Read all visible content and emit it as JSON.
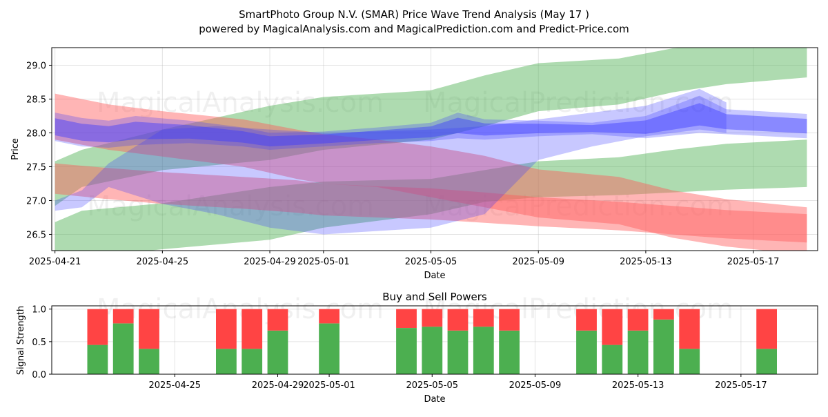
{
  "title_line1": "SmartPhoto Group N.V. (SMAR) Price Wave Trend Analysis (May 17 )",
  "title_line2": "powered by MagicalAnalysis.com and MagicalPrediction.com and Predict-Price.com",
  "watermarks": [
    "MagicalAnalysis.com",
    "MagicalPrediction.com"
  ],
  "colors": {
    "green_band": "#4caf50",
    "red_band": "#ff5a5a",
    "blue_band": "#3b3bff",
    "buy_bar": "#4caf50",
    "sell_bar": "#ff4444"
  },
  "chart_data": [
    {
      "type": "area",
      "name": "price-wave-chart",
      "title": "",
      "xlabel": "Date",
      "ylabel": "Price",
      "xlim": [
        "2025-04-20",
        "2025-05-20"
      ],
      "ylim": [
        26.26,
        29.26
      ],
      "x_ticks": [
        "2025-04-21",
        "2025-04-25",
        "2025-04-29",
        "2025-05-01",
        "2025-05-05",
        "2025-05-09",
        "2025-05-13",
        "2025-05-17"
      ],
      "y_ticks": [
        "26.5",
        "27.0",
        "27.5",
        "28.0",
        "28.5",
        "29.0"
      ],
      "grid": true,
      "series": [
        {
          "name": "green-band-upper",
          "color": "green",
          "x": [
            "2025-04-21",
            "2025-04-22",
            "2025-04-25",
            "2025-04-29",
            "2025-05-01",
            "2025-05-05",
            "2025-05-07",
            "2025-05-09",
            "2025-05-12",
            "2025-05-14",
            "2025-05-16",
            "2025-05-19"
          ],
          "upper": [
            27.58,
            27.75,
            28.05,
            28.4,
            28.53,
            28.63,
            28.85,
            29.03,
            29.1,
            29.25,
            29.3,
            29.3
          ],
          "lower": [
            26.92,
            27.2,
            27.45,
            27.6,
            27.75,
            27.9,
            28.1,
            28.32,
            28.42,
            28.6,
            28.72,
            28.82
          ]
        },
        {
          "name": "green-band-lower",
          "color": "green",
          "x": [
            "2025-04-21",
            "2025-04-22",
            "2025-04-25",
            "2025-04-29",
            "2025-05-01",
            "2025-05-05",
            "2025-05-07",
            "2025-05-09",
            "2025-05-12",
            "2025-05-14",
            "2025-05-16",
            "2025-05-19"
          ],
          "upper": [
            26.68,
            26.85,
            26.96,
            27.2,
            27.28,
            27.32,
            27.45,
            27.58,
            27.64,
            27.75,
            27.84,
            27.9
          ],
          "lower": [
            26.1,
            26.15,
            26.28,
            26.42,
            26.6,
            26.8,
            26.98,
            27.05,
            27.08,
            27.12,
            27.16,
            27.2
          ]
        },
        {
          "name": "red-band-upper",
          "color": "red",
          "x": [
            "2025-04-21",
            "2025-04-23",
            "2025-04-25",
            "2025-04-28",
            "2025-04-30",
            "2025-05-01",
            "2025-05-03",
            "2025-05-05",
            "2025-05-07",
            "2025-05-09",
            "2025-05-12",
            "2025-05-14",
            "2025-05-16",
            "2025-05-19"
          ],
          "upper": [
            28.58,
            28.42,
            28.32,
            28.2,
            28.05,
            27.98,
            27.9,
            27.8,
            27.66,
            27.46,
            27.35,
            27.15,
            27.02,
            26.9
          ],
          "lower": [
            27.9,
            27.75,
            27.65,
            27.5,
            27.32,
            27.25,
            27.2,
            27.05,
            26.9,
            26.75,
            26.65,
            26.45,
            26.32,
            26.2
          ]
        },
        {
          "name": "red-band-lower",
          "color": "red",
          "x": [
            "2025-04-21",
            "2025-04-23",
            "2025-04-25",
            "2025-04-28",
            "2025-04-30",
            "2025-05-01",
            "2025-05-03",
            "2025-05-05",
            "2025-05-07",
            "2025-05-09",
            "2025-05-12",
            "2025-05-14",
            "2025-05-16",
            "2025-05-19"
          ],
          "upper": [
            27.55,
            27.48,
            27.42,
            27.35,
            27.3,
            27.25,
            27.21,
            27.18,
            27.12,
            27.05,
            26.98,
            26.92,
            26.86,
            26.8
          ],
          "lower": [
            27.1,
            27.02,
            26.95,
            26.88,
            26.82,
            26.78,
            26.75,
            26.72,
            26.67,
            26.62,
            26.56,
            26.5,
            26.44,
            26.38
          ]
        },
        {
          "name": "blue-band-main",
          "color": "blue",
          "x": [
            "2025-04-21",
            "2025-04-22",
            "2025-04-23",
            "2025-04-24",
            "2025-04-26",
            "2025-04-28",
            "2025-04-29",
            "2025-05-01",
            "2025-05-03",
            "2025-05-05",
            "2025-05-06",
            "2025-05-07",
            "2025-05-09",
            "2025-05-11",
            "2025-05-13",
            "2025-05-15",
            "2025-05-16",
            "2025-05-19"
          ],
          "upper": [
            28.3,
            28.22,
            28.18,
            28.25,
            28.18,
            28.08,
            28.0,
            28.02,
            28.08,
            28.15,
            28.3,
            28.2,
            28.18,
            28.15,
            28.25,
            28.55,
            28.35,
            28.28
          ],
          "lower": [
            27.88,
            27.8,
            27.78,
            27.82,
            27.85,
            27.8,
            27.75,
            27.8,
            27.85,
            27.88,
            27.92,
            27.9,
            27.95,
            27.98,
            27.92,
            28.0,
            27.98,
            27.92
          ]
        },
        {
          "name": "blue-band-rising",
          "color": "blue",
          "x": [
            "2025-04-21",
            "2025-04-22",
            "2025-04-23",
            "2025-04-25",
            "2025-04-27",
            "2025-04-29",
            "2025-05-01",
            "2025-05-03",
            "2025-05-05",
            "2025-05-07",
            "2025-05-09",
            "2025-05-11",
            "2025-05-13",
            "2025-05-15",
            "2025-05-16"
          ],
          "upper": [
            27.0,
            27.15,
            27.55,
            28.05,
            28.1,
            28.05,
            28.0,
            28.02,
            28.05,
            28.1,
            28.2,
            28.3,
            28.4,
            28.65,
            28.45
          ],
          "lower": [
            26.85,
            26.9,
            27.2,
            26.95,
            26.8,
            26.6,
            26.5,
            26.55,
            26.6,
            26.8,
            27.6,
            27.8,
            27.95,
            28.05,
            28.0
          ]
        }
      ]
    },
    {
      "type": "bar",
      "name": "buy-sell-powers-chart",
      "title": "Buy and Sell Powers",
      "xlabel": "Date",
      "ylabel": "Signal Strength",
      "ylim": [
        0,
        1.05
      ],
      "y_ticks": [
        "0.0",
        "0.5",
        "1.0"
      ],
      "x_ticks": [
        "2025-04-25",
        "2025-04-29",
        "2025-05-01",
        "2025-05-05",
        "2025-05-09",
        "2025-05-13",
        "2025-05-17"
      ],
      "grid": true,
      "dates": [
        "2025-04-22",
        "2025-04-23",
        "2025-04-24",
        "2025-04-27",
        "2025-04-28",
        "2025-04-29",
        "2025-05-01",
        "2025-05-04",
        "2025-05-05",
        "2025-05-06",
        "2025-05-07",
        "2025-05-08",
        "2025-05-11",
        "2025-05-12",
        "2025-05-13",
        "2025-05-14",
        "2025-05-15",
        "2025-05-18"
      ],
      "buy": [
        0.45,
        0.78,
        0.39,
        0.39,
        0.39,
        0.67,
        0.78,
        0.71,
        0.73,
        0.67,
        0.73,
        0.67,
        0.67,
        0.45,
        0.67,
        0.84,
        0.39,
        0.39
      ],
      "total": 1.0
    }
  ]
}
